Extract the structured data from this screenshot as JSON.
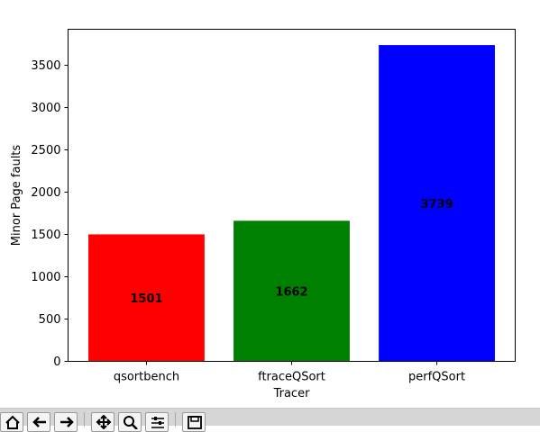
{
  "chart_data": {
    "type": "bar",
    "categories": [
      "qsortbench",
      "ftraceQSort",
      "perfQSort"
    ],
    "values": [
      1501,
      1662,
      3739
    ],
    "bar_colors": [
      "#ff0000",
      "#008000",
      "#0000ff"
    ],
    "data_labels": [
      "1501",
      "1662",
      "3739"
    ],
    "xlabel": "Tracer",
    "ylabel": "Minor Page faults",
    "ylim": [
      0,
      3926
    ],
    "yticks": [
      0,
      500,
      1000,
      1500,
      2000,
      2500,
      3000,
      3500
    ],
    "grid": false
  },
  "toolbar": {
    "buttons": [
      "home-icon",
      "back-icon",
      "forward-icon",
      "pan-icon",
      "zoom-icon",
      "configure-subplots-icon",
      "save-icon"
    ]
  }
}
